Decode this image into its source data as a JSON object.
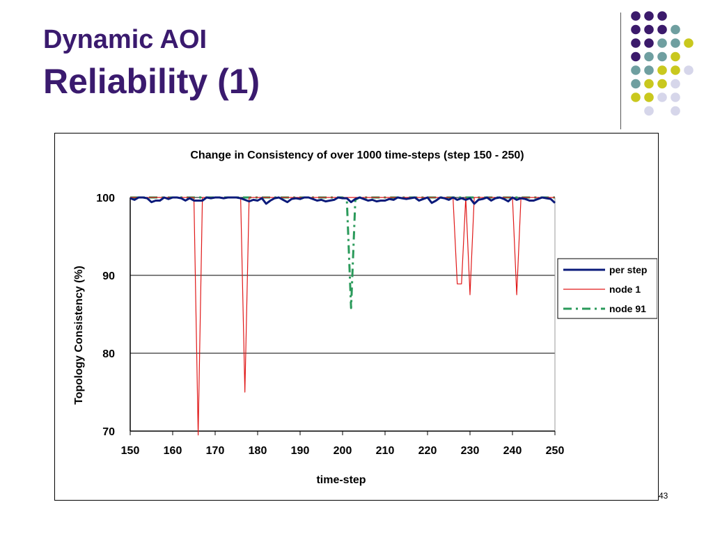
{
  "slide": {
    "title_line1": "Dynamic AOI",
    "title_line2": "Reliability (1)",
    "page_number": "43"
  },
  "colors": {
    "title": "#3a1a6e",
    "dot_purple": "#3b1a6b",
    "dot_teal": "#6f9fa0",
    "dot_yellow": "#c9c81e",
    "dot_lavender": "#d6d6ea"
  },
  "decoration": {
    "dot_grid": [
      [
        "purple",
        "purple",
        "purple",
        "",
        "",
        ""
      ],
      [
        "purple",
        "purple",
        "purple",
        "teal",
        "",
        ""
      ],
      [
        "purple",
        "purple",
        "teal",
        "teal",
        "yellow",
        ""
      ],
      [
        "purple",
        "teal",
        "teal",
        "yellow",
        "",
        ""
      ],
      [
        "teal",
        "teal",
        "yellow",
        "yellow",
        "lavender",
        ""
      ],
      [
        "teal",
        "yellow",
        "yellow",
        "lavender",
        "",
        ""
      ],
      [
        "yellow",
        "yellow",
        "lavender",
        "lavender",
        "",
        ""
      ],
      [
        "",
        "lavender",
        "",
        "lavender",
        "",
        ""
      ]
    ]
  },
  "chart_data": {
    "type": "line",
    "title": "Change in Consistency of over 1000 time-steps (step 150 - 250)",
    "xlabel": "time-step",
    "ylabel": "Topology Consistency (%)",
    "xlim": [
      150,
      250
    ],
    "ylim": [
      70,
      100
    ],
    "xticks": [
      "150",
      "160",
      "170",
      "180",
      "190",
      "200",
      "210",
      "220",
      "230",
      "240",
      "250"
    ],
    "yticks": [
      "70",
      "80",
      "90",
      "100"
    ],
    "grid": "horizontal",
    "legend_position": "right",
    "series": [
      {
        "name": "per step",
        "color": "#0a1a7a",
        "style": "solid-thick",
        "x": [
          150,
          151,
          152,
          153,
          154,
          155,
          156,
          157,
          158,
          159,
          160,
          161,
          162,
          163,
          164,
          165,
          166,
          167,
          168,
          169,
          170,
          171,
          172,
          173,
          174,
          175,
          176,
          177,
          178,
          179,
          180,
          181,
          182,
          183,
          184,
          185,
          186,
          187,
          188,
          189,
          190,
          191,
          192,
          193,
          194,
          195,
          196,
          197,
          198,
          199,
          200,
          201,
          202,
          203,
          204,
          205,
          206,
          207,
          208,
          209,
          210,
          211,
          212,
          213,
          214,
          215,
          216,
          217,
          218,
          219,
          220,
          221,
          222,
          223,
          224,
          225,
          226,
          227,
          228,
          229,
          230,
          231,
          232,
          233,
          234,
          235,
          236,
          237,
          238,
          239,
          240,
          241,
          242,
          243,
          244,
          245,
          246,
          247,
          248,
          249,
          250
        ],
        "y": [
          99.9,
          99.7,
          100,
          100,
          99.9,
          99.4,
          99.6,
          99.6,
          100,
          99.8,
          100,
          100,
          99.9,
          99.6,
          99.9,
          99.6,
          99.6,
          99.6,
          100,
          99.9,
          100,
          100,
          99.9,
          100,
          100,
          100,
          99.9,
          99.7,
          99.5,
          99.7,
          99.6,
          99.9,
          99.2,
          99.6,
          99.9,
          100,
          99.7,
          99.4,
          99.8,
          99.9,
          99.8,
          100,
          100,
          99.8,
          99.6,
          99.7,
          99.5,
          99.6,
          99.7,
          100,
          99.9,
          99.9,
          99.4,
          99.8,
          100,
          99.8,
          99.6,
          99.7,
          99.5,
          99.6,
          99.6,
          99.8,
          99.7,
          100,
          99.9,
          99.8,
          99.9,
          100,
          99.6,
          99.8,
          100,
          99.3,
          99.6,
          100,
          99.9,
          99.7,
          100,
          99.7,
          99.9,
          99.7,
          99.9,
          99.2,
          99.7,
          99.8,
          100,
          99.6,
          99.9,
          100,
          99.8,
          99.5,
          100,
          99.7,
          99.9,
          99.8,
          99.6,
          99.6,
          99.8,
          100,
          99.9,
          99.8,
          99.3
        ]
      },
      {
        "name": "node 1",
        "color": "#e01818",
        "style": "solid-thin",
        "x": [
          150,
          152,
          154,
          156,
          158,
          160,
          162,
          164,
          165,
          166,
          167,
          168,
          170,
          172,
          174,
          176,
          177,
          178,
          180,
          182,
          184,
          186,
          188,
          190,
          192,
          194,
          196,
          198,
          200,
          202,
          204,
          206,
          208,
          210,
          212,
          214,
          216,
          218,
          220,
          222,
          224,
          226,
          227,
          228,
          229,
          230,
          231,
          232,
          234,
          236,
          238,
          240,
          241,
          242,
          244,
          246,
          248,
          250
        ],
        "y": [
          100,
          100,
          100,
          100,
          100,
          100,
          100,
          100,
          100,
          69.5,
          100,
          100,
          100,
          100,
          100,
          100,
          75,
          100,
          100,
          100,
          100,
          100,
          100,
          100,
          100,
          100,
          100,
          100,
          100,
          100,
          100,
          100,
          100,
          100,
          100,
          100,
          100,
          100,
          100,
          100,
          100,
          100,
          88.9,
          88.9,
          100,
          87.5,
          100,
          100,
          100,
          100,
          100,
          100,
          87.5,
          100,
          100,
          100,
          100,
          100
        ]
      },
      {
        "name": "node 91",
        "color": "#2a9a5a",
        "style": "dash-dot",
        "x": [
          150,
          160,
          170,
          180,
          190,
          200,
          201,
          202,
          203,
          204,
          210,
          220,
          230,
          240,
          250
        ],
        "y": [
          100,
          100,
          100,
          100,
          100,
          100,
          99.8,
          85.8,
          99.7,
          100,
          100,
          100,
          100,
          100,
          100
        ]
      }
    ]
  }
}
